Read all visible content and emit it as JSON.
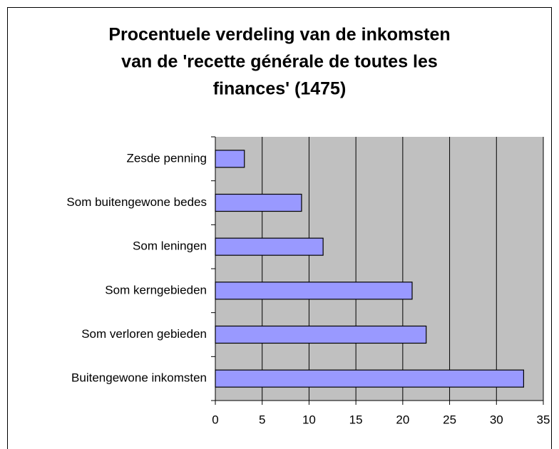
{
  "chart_data": {
    "type": "bar",
    "orientation": "horizontal",
    "title": [
      "Procentuele verdeling van de inkomsten",
      "van de 'recette générale de toutes les",
      "finances' (1475)"
    ],
    "categories": [
      "Zesde penning",
      "Som buitengewone bedes",
      "Som leningen",
      "Som kerngebieden",
      "Som verloren gebieden",
      "Buitengewone inkomsten"
    ],
    "values": [
      3.1,
      9.2,
      11.5,
      21.0,
      22.5,
      32.9
    ],
    "color": "#9999ff",
    "xlim": [
      0,
      35
    ],
    "xticks": [
      0,
      5,
      10,
      15,
      20,
      25,
      30,
      35
    ],
    "grid": true
  }
}
